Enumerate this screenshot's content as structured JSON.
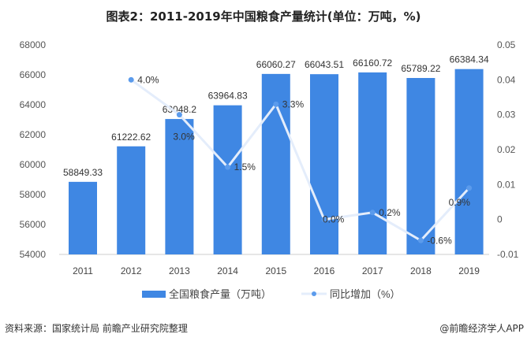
{
  "title": "图表2：2011-2019年中国粮食产量统计(单位：万吨，%)",
  "source": "资料来源：国家统计局 前瞻产业研究院整理",
  "credit": "@前瞻经济学人APP",
  "chart_data": {
    "type": "bar+line",
    "categories": [
      "2011",
      "2012",
      "2013",
      "2014",
      "2015",
      "2016",
      "2017",
      "2018",
      "2019"
    ],
    "series": [
      {
        "name": "全国粮食产量（万吨）",
        "type": "bar",
        "axis": "left",
        "color": "#3f87e3",
        "values": [
          58849.33,
          61222.62,
          63048.2,
          63964.83,
          66060.27,
          66043.51,
          66160.72,
          65789.22,
          66384.34
        ],
        "labels": [
          "58849.33",
          "61222.62",
          "63048.2",
          "63964.83",
          "66060.27",
          "66043.51",
          "66160.72",
          "65789.22",
          "66384.34"
        ]
      },
      {
        "name": "同比增加（%）",
        "type": "line",
        "axis": "right",
        "color": "#5b9bec",
        "values": [
          null,
          0.04,
          0.03,
          0.015,
          0.033,
          0.0,
          0.002,
          -0.006,
          0.009
        ],
        "labels": [
          "",
          "4.0%",
          "3.0%",
          "1.5%",
          "3.3%",
          "0.0%",
          "0.2%",
          "-0.6%",
          "0.9%"
        ]
      }
    ],
    "yleft": {
      "lim": [
        54000,
        68000
      ],
      "ticks": [
        "54000",
        "56000",
        "58000",
        "60000",
        "62000",
        "64000",
        "66000",
        "68000"
      ]
    },
    "yright": {
      "lim": [
        -0.01,
        0.05
      ],
      "ticks": [
        "-0.01",
        "0",
        "0.01",
        "0.02",
        "0.03",
        "0.04",
        "0.05"
      ]
    },
    "grid": false,
    "legend": "bottom"
  }
}
